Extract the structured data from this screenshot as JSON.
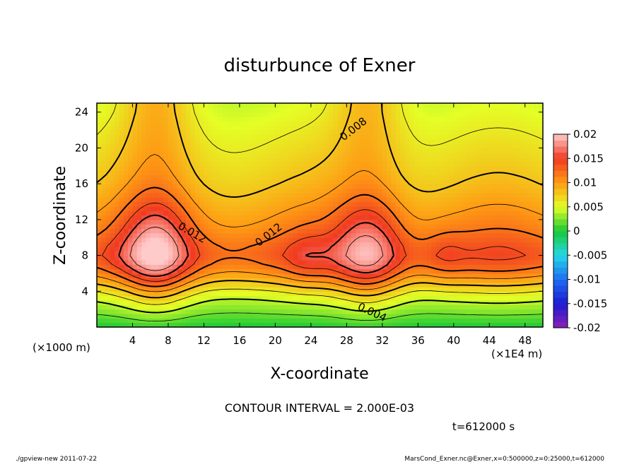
{
  "chart_data": {
    "type": "heatmap",
    "title": "disturbunce of Exner",
    "xlabel": "X-coordinate",
    "ylabel": "Z-coordinate",
    "x_unit_left": "(×1000 m)",
    "x_unit_right": "(×1E4 m)",
    "xlim": [
      0,
      50
    ],
    "ylim": [
      0,
      25
    ],
    "x_ticks": [
      "4",
      "8",
      "12",
      "16",
      "20",
      "24",
      "28",
      "32",
      "36",
      "40",
      "44",
      "48"
    ],
    "y_ticks": [
      "4",
      "8",
      "12",
      "16",
      "20",
      "24"
    ],
    "colorbar_ticks": [
      "0.02",
      "0.015",
      "0.01",
      "0.005",
      "0",
      "-0.005",
      "-0.01",
      "-0.015",
      "-0.02"
    ],
    "color_range": [
      -0.02,
      0.02
    ],
    "contour_labels": [
      "0.008",
      "0.012",
      "0.012",
      "0.004"
    ],
    "contour_interval_text": "CONTOUR INTERVAL = 2.000E-03",
    "time_text": "t=612000 s",
    "footer_left": "./gpview-new  2011-07-22",
    "footer_right": "MarsCond_Exner.nc@Exner,x=0:500000,z=0:25000,t=612000",
    "profile_z": [
      0,
      1,
      2,
      3,
      4,
      5,
      6,
      7,
      8,
      9,
      10,
      11,
      12,
      13,
      14,
      15,
      16,
      17,
      18,
      19,
      20,
      21,
      22,
      23,
      24,
      25
    ],
    "profile_value": [
      0.0,
      0.0015,
      0.003,
      0.0045,
      0.0065,
      0.009,
      0.0115,
      0.0135,
      0.0145,
      0.014,
      0.013,
      0.012,
      0.0112,
      0.0105,
      0.0098,
      0.0092,
      0.0086,
      0.0081,
      0.0077,
      0.0073,
      0.0069,
      0.0065,
      0.0061,
      0.0057,
      0.0053,
      0.005
    ],
    "highs": [
      {
        "x": 6.7,
        "z": 8.5,
        "amp": 0.007
      },
      {
        "x": 30.5,
        "z": 8.5,
        "amp": 0.0065
      },
      {
        "x": 23.5,
        "z": 7.8,
        "amp": 0.0015
      },
      {
        "x": 39,
        "z": 8.0,
        "amp": 0.0015
      }
    ],
    "colors": {
      "minus_0_02": "#8c1fb4",
      "minus_0_015": "#1c1cd0",
      "minus_0_01": "#1e6cf2",
      "minus_0_005": "#24d8e6",
      "zero": "#19c935",
      "plus_0_005": "#e4ff26",
      "plus_0_01": "#ff9a14",
      "plus_0_015": "#f03a22",
      "plus_0_02": "#ffcaca"
    }
  }
}
